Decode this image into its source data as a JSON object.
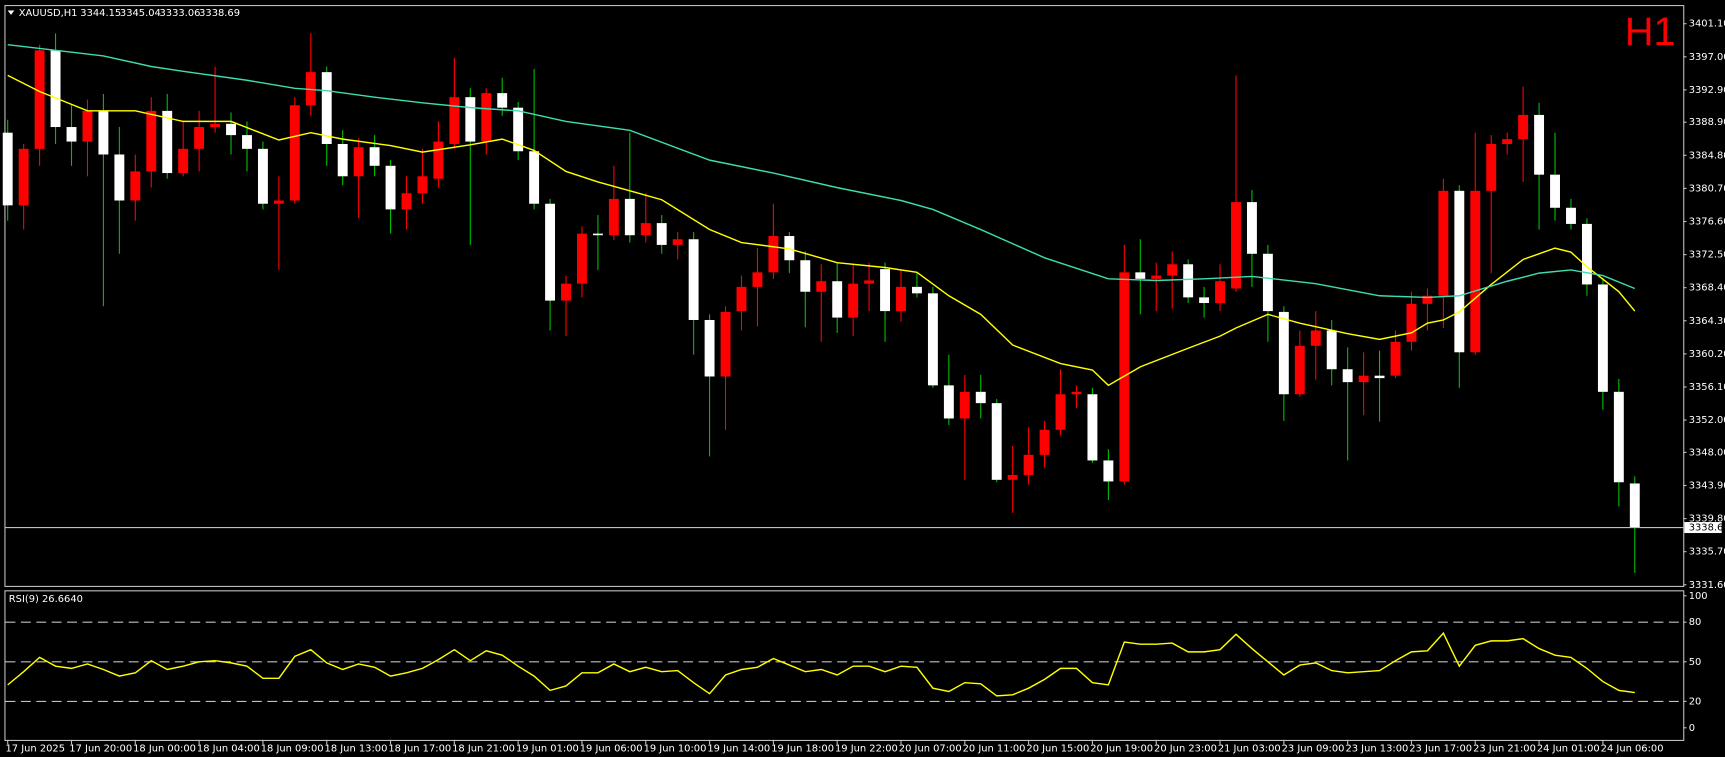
{
  "chart_data": [
    {
      "type": "candlestick",
      "symbol": "XAUUSD,H1",
      "timeframe_label": "H1",
      "candles": {
        "open": [
          3387.6,
          3378.6,
          3385.6,
          3397.8,
          3388.3,
          3386.5,
          3390.3,
          3384.9,
          3379.2,
          3382.8,
          3390.3,
          3382.6,
          3385.6,
          3388.3,
          3388.7,
          3387.3,
          3385.6,
          3378.8,
          3379.2,
          3391.0,
          3395.1,
          3386.2,
          3382.2,
          3385.8,
          3383.5,
          3378.1,
          3380.1,
          3381.9,
          3386.2,
          3392.0,
          3386.5,
          3392.5,
          3390.7,
          3385.3,
          3378.8,
          3366.8,
          3368.9,
          3375.1,
          3374.9,
          3379.4,
          3374.9,
          3376.4,
          3373.7,
          3374.4,
          3364.4,
          3357.4,
          3365.5,
          3368.5,
          3370.3,
          3374.8,
          3371.8,
          3367.9,
          3369.2,
          3364.7,
          3368.9,
          3370.7,
          3365.5,
          3368.5,
          3367.7,
          3356.3,
          3352.2,
          3355.5,
          3354.1,
          3344.6,
          3345.2,
          3347.7,
          3350.8,
          3355.2,
          3355.2,
          3347.0,
          3344.4,
          3370.3,
          3369.5,
          3369.9,
          3371.3,
          3367.2,
          3366.5,
          3368.3,
          3379.0,
          3372.6,
          3365.4,
          3355.2,
          3361.2,
          3363.1,
          3358.3,
          3356.7,
          3357.5,
          3357.5,
          3361.7,
          3366.4,
          3367.4,
          3380.4,
          3360.4,
          3380.4,
          3386.2,
          3386.8,
          3389.8,
          3382.4,
          3378.3,
          3376.3,
          3368.8,
          3355.5,
          3344.15
        ],
        "high": [
          3389.2,
          3386.2,
          3398.5,
          3399.9,
          3391.0,
          3391.7,
          3392.4,
          3388.3,
          3384.9,
          3392.0,
          3392.4,
          3389.0,
          3390.3,
          3395.8,
          3390.1,
          3389.0,
          3386.5,
          3382.2,
          3392.0,
          3399.9,
          3395.8,
          3387.9,
          3386.9,
          3387.3,
          3384.2,
          3382.2,
          3385.6,
          3389.0,
          3396.9,
          3393.1,
          3393.1,
          3394.4,
          3391.4,
          3395.5,
          3379.4,
          3369.9,
          3376.0,
          3377.4,
          3383.5,
          3387.6,
          3380.1,
          3377.4,
          3375.3,
          3375.3,
          3365.1,
          3366.1,
          3369.9,
          3373.3,
          3378.8,
          3375.3,
          3372.9,
          3371.3,
          3371.5,
          3371.3,
          3371.5,
          3371.5,
          3370.6,
          3370.2,
          3368.5,
          3360.1,
          3357.6,
          3357.6,
          3354.6,
          3348.8,
          3351.1,
          3351.9,
          3358.3,
          3356.3,
          3356.0,
          3348.4,
          3373.7,
          3374.4,
          3371.5,
          3372.9,
          3371.9,
          3368.5,
          3371.3,
          3394.7,
          3380.5,
          3373.7,
          3366.1,
          3363.1,
          3365.5,
          3364.4,
          3361.0,
          3360.4,
          3360.6,
          3363.1,
          3367.9,
          3368.3,
          3381.9,
          3381.1,
          3387.6,
          3387.3,
          3387.6,
          3393.3,
          3391.3,
          3387.6,
          3379.4,
          3377.0,
          3369.6,
          3357.1,
          3345.04
        ],
        "low": [
          3376.7,
          3375.6,
          3383.5,
          3386.2,
          3383.5,
          3382.2,
          3366.1,
          3372.6,
          3376.7,
          3380.8,
          3381.9,
          3382.2,
          3382.8,
          3387.6,
          3384.9,
          3382.8,
          3378.1,
          3370.6,
          3378.8,
          3389.7,
          3383.5,
          3381.1,
          3377.0,
          3382.2,
          3375.1,
          3375.6,
          3378.8,
          3380.8,
          3385.6,
          3373.7,
          3384.9,
          3389.7,
          3384.2,
          3378.1,
          3363.1,
          3362.4,
          3367.2,
          3370.6,
          3374.3,
          3374.0,
          3374.0,
          3372.6,
          3371.9,
          3360.1,
          3347.5,
          3350.8,
          3363.1,
          3363.6,
          3369.5,
          3370.2,
          3363.5,
          3361.7,
          3362.8,
          3362.4,
          3365.5,
          3361.7,
          3364.2,
          3367.2,
          3356.0,
          3351.4,
          3344.6,
          3352.2,
          3344.3,
          3340.5,
          3344.0,
          3346.1,
          3350.1,
          3353.5,
          3346.7,
          3342.1,
          3344.0,
          3365.1,
          3365.5,
          3365.8,
          3366.5,
          3364.7,
          3365.5,
          3367.9,
          3368.5,
          3361.7,
          3351.9,
          3354.9,
          3357.0,
          3356.3,
          3347.0,
          3352.6,
          3351.8,
          3357.2,
          3360.6,
          3363.1,
          3363.4,
          3356.0,
          3360.1,
          3370.2,
          3384.9,
          3381.5,
          3375.6,
          3376.7,
          3375.6,
          3367.4,
          3353.3,
          3341.3,
          3333.06
        ],
        "close": [
          3378.6,
          3385.6,
          3397.8,
          3388.3,
          3386.5,
          3390.3,
          3384.9,
          3379.2,
          3382.8,
          3390.3,
          3382.6,
          3385.6,
          3388.3,
          3388.7,
          3387.3,
          3385.6,
          3378.8,
          3379.2,
          3391.0,
          3395.1,
          3386.2,
          3382.2,
          3385.8,
          3383.5,
          3378.1,
          3380.1,
          3382.2,
          3386.5,
          3392.0,
          3386.5,
          3392.5,
          3390.7,
          3385.3,
          3378.8,
          3366.8,
          3368.9,
          3375.1,
          3374.9,
          3379.4,
          3374.9,
          3376.4,
          3373.7,
          3374.4,
          3364.4,
          3357.4,
          3365.4,
          3368.5,
          3370.3,
          3374.8,
          3371.8,
          3367.9,
          3369.2,
          3364.7,
          3368.9,
          3369.3,
          3365.5,
          3368.5,
          3367.7,
          3356.3,
          3352.2,
          3355.5,
          3354.1,
          3344.6,
          3345.2,
          3347.7,
          3350.8,
          3355.2,
          3355.5,
          3347.0,
          3344.4,
          3370.3,
          3369.5,
          3369.9,
          3371.3,
          3367.2,
          3366.5,
          3369.2,
          3379.0,
          3372.6,
          3365.5,
          3355.2,
          3361.2,
          3363.1,
          3358.3,
          3356.7,
          3357.5,
          3357.2,
          3361.7,
          3366.4,
          3367.4,
          3380.4,
          3360.4,
          3380.4,
          3386.2,
          3386.8,
          3389.8,
          3382.4,
          3378.3,
          3376.3,
          3368.8,
          3355.5,
          3344.3,
          3338.69
        ]
      },
      "up_color": "#ff0000",
      "down_color": "#ffffff",
      "down_wick_color": "#00c000",
      "series": [
        {
          "color": "#ffff00",
          "x": [
            0,
            2,
            5,
            8,
            11,
            14,
            17,
            19,
            21,
            24,
            26,
            29,
            31,
            33,
            35,
            37,
            41,
            44,
            46,
            49,
            52,
            55,
            57,
            59,
            61,
            63,
            66,
            68,
            69,
            71,
            74,
            76,
            77,
            79,
            81,
            84,
            86,
            88,
            89,
            90,
            91,
            93,
            95,
            97,
            98,
            99,
            101,
            102
          ],
          "values": [
            3394.7,
            3392.7,
            3390.3,
            3390.3,
            3389.0,
            3389.0,
            3386.7,
            3387.6,
            3386.8,
            3386.0,
            3385.2,
            3386.1,
            3386.8,
            3385.4,
            3382.8,
            3381.5,
            3379.3,
            3375.6,
            3374.0,
            3373.2,
            3371.5,
            3370.9,
            3370.3,
            3367.4,
            3365.1,
            3361.3,
            3359.0,
            3358.2,
            3356.3,
            3358.6,
            3360.9,
            3362.4,
            3363.4,
            3365.1,
            3364.0,
            3362.7,
            3362.0,
            3362.8,
            3364.0,
            3364.4,
            3365.4,
            3368.8,
            3371.9,
            3373.3,
            3372.8,
            3371.0,
            3367.9,
            3365.5
          ]
        },
        {
          "color": "#3ddcb0",
          "x": [
            0,
            3,
            6,
            9,
            11,
            15,
            18,
            20,
            23,
            26,
            29,
            32,
            35,
            39,
            44,
            48,
            52,
            56,
            58,
            61,
            65,
            69,
            72,
            75,
            78,
            82,
            86,
            89,
            91,
            94,
            96,
            98,
            100,
            102
          ],
          "values": [
            3398.5,
            3397.8,
            3397.1,
            3395.8,
            3395.2,
            3394.1,
            3393.1,
            3392.8,
            3392.0,
            3391.3,
            3390.7,
            3390.3,
            3389.0,
            3387.9,
            3384.2,
            3382.6,
            3380.8,
            3379.2,
            3378.1,
            3375.6,
            3372.1,
            3369.5,
            3369.3,
            3369.5,
            3369.8,
            3368.9,
            3367.4,
            3367.2,
            3367.4,
            3369.2,
            3370.2,
            3370.6,
            3369.9,
            3368.3
          ]
        }
      ],
      "ylim": [
        3331.6,
        3403.28
      ],
      "yticks": [
        {
          "value": 3401.1,
          "label": "3401.10"
        },
        {
          "value": 3397.0,
          "label": "3397.00"
        },
        {
          "value": 3392.9,
          "label": "3392.90"
        },
        {
          "value": 3388.9,
          "label": "3388.90"
        },
        {
          "value": 3384.8,
          "label": "3384.80"
        },
        {
          "value": 3380.7,
          "label": "3380.70"
        },
        {
          "value": 3376.6,
          "label": "3376.60"
        },
        {
          "value": 3372.5,
          "label": "3372.50"
        },
        {
          "value": 3368.4,
          "label": "3368.40"
        },
        {
          "value": 3364.3,
          "label": "3364.30"
        },
        {
          "value": 3360.2,
          "label": "3360.20"
        },
        {
          "value": 3356.1,
          "label": "3356.10"
        },
        {
          "value": 3352.0,
          "label": "3352.00"
        },
        {
          "value": 3348.0,
          "label": "3348.00"
        },
        {
          "value": 3343.9,
          "label": "3343.90"
        },
        {
          "value": 3339.8,
          "label": "3339.80"
        },
        {
          "value": 3335.7,
          "label": "3335.70"
        },
        {
          "value": 3331.6,
          "label": "3331.60"
        }
      ],
      "xticks": [
        {
          "value": 0,
          "label": "17 Jun 2025"
        },
        {
          "value": 4,
          "label": "17 Jun 20:00"
        },
        {
          "value": 8,
          "label": "18 Jun 00:00"
        },
        {
          "value": 12,
          "label": "18 Jun 04:00"
        },
        {
          "value": 16,
          "label": "18 Jun 09:00"
        },
        {
          "value": 20,
          "label": "18 Jun 13:00"
        },
        {
          "value": 24,
          "label": "18 Jun 17:00"
        },
        {
          "value": 28,
          "label": "18 Jun 21:00"
        },
        {
          "value": 32,
          "label": "19 Jun 01:00"
        },
        {
          "value": 36,
          "label": "19 Jun 06:00"
        },
        {
          "value": 40,
          "label": "19 Jun 10:00"
        },
        {
          "value": 44,
          "label": "19 Jun 14:00"
        },
        {
          "value": 48,
          "label": "19 Jun 18:00"
        },
        {
          "value": 52,
          "label": "19 Jun 22:00"
        },
        {
          "value": 56,
          "label": "20 Jun 07:00"
        },
        {
          "value": 60,
          "label": "20 Jun 11:00"
        },
        {
          "value": 64,
          "label": "20 Jun 15:00"
        },
        {
          "value": 68,
          "label": "20 Jun 19:00"
        },
        {
          "value": 72,
          "label": "20 Jun 23:00"
        },
        {
          "value": 76,
          "label": "21 Jun 03:00"
        },
        {
          "value": 80,
          "label": "23 Jun 09:00"
        },
        {
          "value": 84,
          "label": "23 Jun 13:00"
        },
        {
          "value": 88,
          "label": "23 Jun 17:00"
        },
        {
          "value": 92,
          "label": "23 Jun 21:00"
        },
        {
          "value": 96,
          "label": "24 Jun 01:00"
        },
        {
          "value": 100,
          "label": "24 Jun 06:00"
        }
      ],
      "current_price_line": true
    },
    {
      "type": "line",
      "title": "RSI(9) 26.6640",
      "color": "#ffff00",
      "values": [
        32.5,
        42.5,
        53.3,
        46.7,
        45.0,
        48.3,
        44.2,
        39.2,
        41.7,
        50.8,
        44.2,
        46.7,
        50.0,
        50.8,
        49.2,
        46.7,
        37.5,
        37.5,
        54.2,
        59.2,
        49.2,
        44.2,
        48.3,
        45.8,
        39.2,
        41.7,
        45.0,
        51.7,
        59.2,
        50.8,
        58.3,
        55.0,
        46.7,
        39.2,
        28.3,
        31.7,
        41.7,
        41.7,
        48.3,
        42.5,
        45.8,
        42.5,
        43.3,
        34.2,
        25.8,
        40.0,
        44.2,
        45.8,
        52.5,
        47.5,
        42.5,
        44.2,
        40.0,
        46.7,
        46.7,
        42.5,
        46.7,
        45.8,
        30.0,
        27.5,
        34.2,
        33.3,
        24.2,
        25.0,
        30.0,
        36.7,
        45.0,
        45.0,
        34.2,
        32.5,
        65.0,
        63.3,
        63.3,
        64.2,
        57.5,
        57.5,
        59.2,
        70.8,
        60.0,
        50.0,
        40.0,
        47.5,
        49.2,
        43.3,
        41.7,
        42.5,
        43.3,
        50.8,
        57.5,
        58.3,
        71.7,
        46.7,
        62.5,
        65.8,
        65.8,
        67.5,
        60.0,
        55.0,
        53.3,
        45.0,
        35.0,
        28.3,
        26.664
      ],
      "ylim": [
        0,
        100
      ],
      "yticks": [
        100,
        80,
        50,
        20,
        0
      ],
      "levels": [
        80,
        50,
        20
      ]
    }
  ]
}
